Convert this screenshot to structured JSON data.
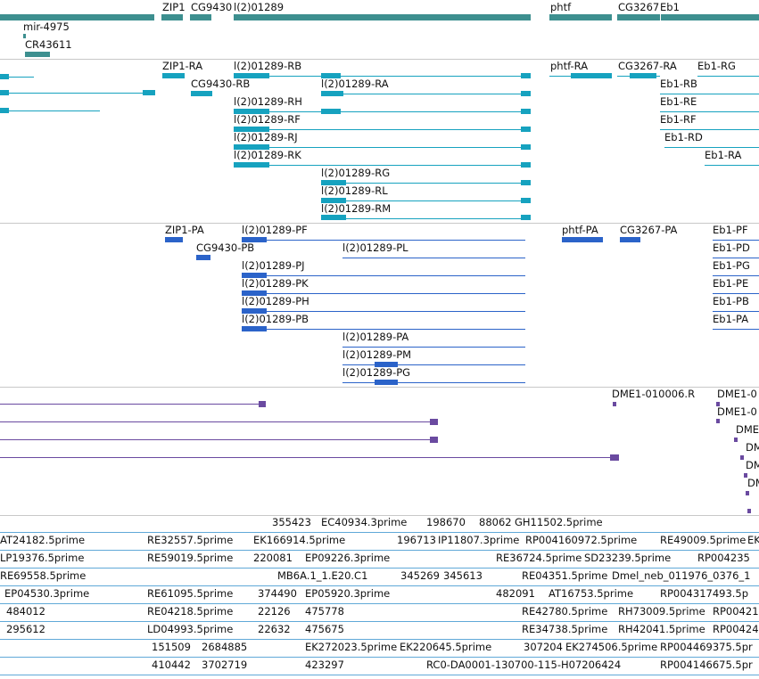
{
  "colors": {
    "gene": "#3d8f8f",
    "transcript": "#16a2bf",
    "protein": "#2b63c9",
    "alignment": "#6a4aa0",
    "est": "#60a9d8"
  },
  "gene_track": {
    "labels": [
      "ZIP1",
      "CG9430",
      "l(2)01289",
      "phtf",
      "CG3267",
      "Eb1",
      "mir-4975",
      "CR43611"
    ]
  },
  "transcript_track": {
    "labels": [
      "ZIP1-RA",
      "l(2)01289-RB",
      "phtf-RA",
      "CG3267-RA",
      "Eb1-RG",
      "CG9430-RB",
      "l(2)01289-RA",
      "Eb1-RB",
      "l(2)01289-RH",
      "Eb1-RE",
      "l(2)01289-RF",
      "Eb1-RF",
      "l(2)01289-RJ",
      "Eb1-RD",
      "l(2)01289-RK",
      "Eb1-RA",
      "l(2)01289-RG",
      "l(2)01289-RL",
      "l(2)01289-RM"
    ]
  },
  "protein_track": {
    "labels": [
      "ZIP1-PA",
      "l(2)01289-PF",
      "phtf-PA",
      "CG3267-PA",
      "Eb1-PF",
      "CG9430-PB",
      "l(2)01289-PL",
      "Eb1-PD",
      "l(2)01289-PJ",
      "Eb1-PG",
      "l(2)01289-PK",
      "Eb1-PE",
      "l(2)01289-PH",
      "Eb1-PB",
      "l(2)01289-PB",
      "Eb1-PA",
      "l(2)01289-PA",
      "l(2)01289-PM",
      "l(2)01289-PG"
    ]
  },
  "alignment_track": {
    "labels": [
      "DME1-010006.R",
      "DME1-0",
      "DME1-0",
      "DME",
      "DM",
      "DM",
      "DM"
    ]
  },
  "est_track": {
    "labels": [
      "355423",
      "EC40934.3prime",
      "198670",
      "88062",
      "GH11502.5prime",
      "AT24182.5prime",
      "RE32557.5prime",
      "EK166914.5prime",
      "196713",
      "IP11807.3prime",
      "RP004160972.5prime",
      "RE49009.5prime",
      "EK",
      "LP19376.5prime",
      "RE59019.5prime",
      "220081",
      "EP09226.3prime",
      "RE36724.5prime",
      "SD23239.5prime",
      "RP004235",
      "RE69558.5prime",
      "MB6A.1_1.E20.C1",
      "345269",
      "345613",
      "RE04351.5prime",
      "Dmel_neb_011976_0376_1",
      "EP04530.3prime",
      "RE61095.5prime",
      "374490",
      "EP05920.3prime",
      "482091",
      "AT16753.5prime",
      "RP004317493.5p",
      "484012",
      "RE04218.5prime",
      "22126",
      "475778",
      "RE42780.5prime",
      "RH73009.5prime",
      "RP00421",
      "295612",
      "LD04993.5prime",
      "22632",
      "475675",
      "RE34738.5prime",
      "RH42041.5prime",
      "RP00424",
      "151509",
      "2684885",
      "EK272023.5prime",
      "EK220645.5prime",
      "307204",
      "EK274506.5prime",
      "RP004469375.5pr",
      "410442",
      "3702719",
      "423297",
      "RC0-DA0001-130700-115-H07206424",
      "RP004146675.5pr"
    ]
  }
}
